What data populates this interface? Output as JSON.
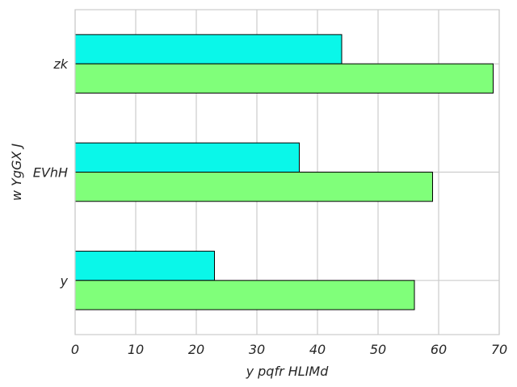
{
  "chart_data": {
    "type": "bar",
    "orientation": "horizontal",
    "categories": [
      "y",
      "EVhH",
      "zk"
    ],
    "series": [
      {
        "values": [
          23,
          37,
          44
        ],
        "color": "#0af7e9"
      },
      {
        "values": [
          56,
          59,
          69
        ],
        "color": "#80ff7a"
      }
    ],
    "xlabel": "y pqfr HLIMd",
    "ylabel": "w YgGX J",
    "xlim": [
      0,
      70
    ],
    "xticks": [
      0,
      10,
      20,
      30,
      40,
      50,
      60,
      70
    ],
    "grid": true
  }
}
